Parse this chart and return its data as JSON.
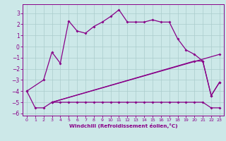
{
  "xlabel": "Windchill (Refroidissement éolien,°C)",
  "xlim": [
    -0.5,
    23.5
  ],
  "ylim": [
    -6.2,
    3.8
  ],
  "xticks": [
    0,
    1,
    2,
    3,
    4,
    5,
    6,
    7,
    8,
    9,
    10,
    11,
    12,
    13,
    14,
    15,
    16,
    17,
    18,
    19,
    20,
    21,
    22,
    23
  ],
  "yticks": [
    -6,
    -5,
    -4,
    -3,
    -2,
    -1,
    0,
    1,
    2,
    3
  ],
  "bg_color": "#cce8e8",
  "grid_color": "#aacccc",
  "line_color": "#880088",
  "line1_x": [
    0,
    1,
    2,
    3,
    4,
    5,
    6,
    7,
    8,
    9,
    10,
    11,
    12,
    13,
    14,
    15,
    16,
    17,
    18,
    19,
    20,
    21,
    22,
    23
  ],
  "line1_y": [
    -4.0,
    -5.5,
    -5.5,
    -5.0,
    -5.0,
    -5.0,
    -5.0,
    -5.0,
    -5.0,
    -5.0,
    -5.0,
    -5.0,
    -5.0,
    -5.0,
    -5.0,
    -5.0,
    -5.0,
    -5.0,
    -5.0,
    -5.0,
    -5.0,
    -5.0,
    -5.5,
    -5.5
  ],
  "line2_x": [
    0,
    2,
    3,
    4,
    5,
    6,
    7,
    8,
    9,
    10,
    11,
    12,
    13,
    14,
    15,
    16,
    17,
    18,
    19,
    20,
    21,
    22,
    23
  ],
  "line2_y": [
    -4.0,
    -3.0,
    -0.5,
    -1.5,
    2.3,
    1.4,
    1.2,
    1.8,
    2.2,
    2.7,
    3.3,
    2.2,
    2.2,
    2.2,
    2.4,
    2.2,
    2.2,
    0.7,
    -0.3,
    -0.7,
    -1.3,
    -4.4,
    -3.2
  ],
  "line3_x": [
    3,
    23
  ],
  "line3_y": [
    -5.0,
    -0.7
  ],
  "line4_x": [
    3,
    20,
    21,
    22,
    23
  ],
  "line4_y": [
    -5.0,
    -1.3,
    -1.3,
    -4.4,
    -3.2
  ]
}
